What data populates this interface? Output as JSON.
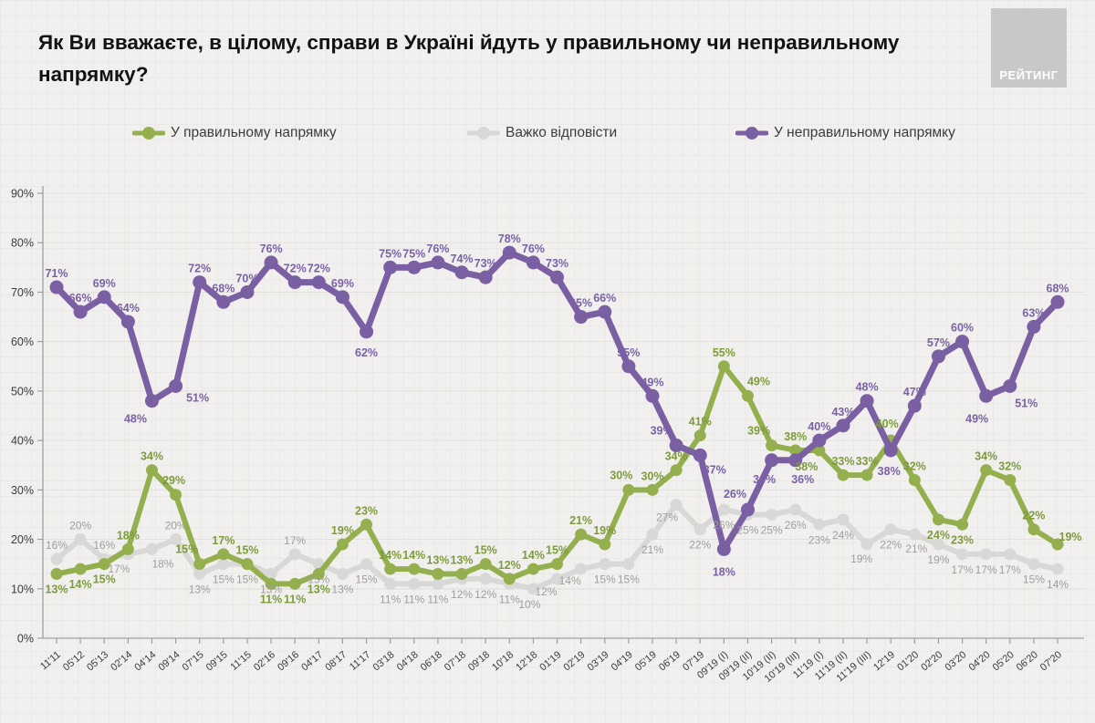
{
  "page": {
    "title": "Як Ви вважаєте, в цілому, справи в Україні йдуть у правильному чи неправильному напрямку?",
    "logo_text": "РЕЙТИНГ"
  },
  "legend": [
    {
      "id": "right-direction",
      "label": "У правильному напрямку",
      "color": "#94af4e"
    },
    {
      "id": "hard-to-say",
      "label": "Важко відповісти",
      "color": "#d8d8d6"
    },
    {
      "id": "wrong-direction",
      "label": "У неправильному напрямку",
      "color": "#7a5fa2"
    }
  ],
  "chart_data": {
    "type": "line",
    "title": "Як Ви вважаєте, в цілому, справи в Україні йдуть у правильному чи неправильному напрямку?",
    "xlabel": "",
    "ylabel": "",
    "ylim": [
      0,
      90
    ],
    "y_ticks": [
      0,
      10,
      20,
      30,
      40,
      50,
      60,
      70,
      80,
      90
    ],
    "y_tick_suffix": "%",
    "grid": true,
    "legend_position": "top",
    "x_labels": [
      "11'11",
      "05'12",
      "05'13",
      "02'14",
      "04'14",
      "09'14",
      "07'15",
      "09'15",
      "11'15",
      "02'16",
      "09'16",
      "04'17",
      "08'17",
      "11'17",
      "03'18",
      "04'18",
      "06'18",
      "07'18",
      "09'18",
      "10'18",
      "12'18",
      "01'19",
      "02'19",
      "03'19",
      "04'19",
      "05'19",
      "06'19",
      "07'19",
      "09'19 (I)",
      "09'19 (II)",
      "10'19 (II)",
      "10'19 (III)",
      "11'19 (I)",
      "11'19 (II)",
      "11'19 (III)",
      "12'19",
      "01'20",
      "02'20",
      "03'20",
      "04'20",
      "05'20",
      "06'20",
      "07'20"
    ],
    "series": [
      {
        "id": "right-direction",
        "name": "У правильному напрямку",
        "color": "#94af4e",
        "label_color": "#7d9b3c",
        "label_default": "above",
        "label_flip": [
          0,
          1,
          2,
          9,
          10,
          11,
          32,
          37,
          38
        ],
        "values": [
          13,
          14,
          15,
          18,
          34,
          29,
          15,
          17,
          15,
          11,
          11,
          13,
          19,
          23,
          14,
          14,
          13,
          13,
          15,
          12,
          14,
          15,
          21,
          19,
          30,
          30,
          34,
          41,
          55,
          49,
          39,
          38,
          38,
          33,
          33,
          40,
          32,
          24,
          23,
          34,
          32,
          22,
          19
        ]
      },
      {
        "id": "hard-to-say",
        "name": "Важко відповісти",
        "color": "#d8d8d6",
        "label_color": "#9e9e9c",
        "label_default": "below",
        "label_flip": [
          0,
          1,
          2,
          5,
          10
        ],
        "values": [
          16,
          20,
          16,
          17,
          18,
          20,
          13,
          15,
          15,
          13,
          17,
          15,
          13,
          15,
          11,
          11,
          11,
          12,
          12,
          11,
          10,
          12,
          14,
          15,
          15,
          21,
          27,
          22,
          26,
          25,
          25,
          26,
          23,
          24,
          19,
          22,
          21,
          19,
          17,
          17,
          17,
          15,
          14
        ]
      },
      {
        "id": "wrong-direction",
        "name": "У неправильному напрямку",
        "color": "#7a5fa2",
        "label_color": "#7a61a6",
        "label_default": "above",
        "label_flip": [
          4,
          5,
          13,
          27,
          28,
          30,
          31,
          35,
          39,
          40
        ],
        "values": [
          71,
          66,
          69,
          64,
          48,
          51,
          72,
          68,
          70,
          76,
          72,
          72,
          69,
          62,
          75,
          75,
          76,
          74,
          73,
          78,
          76,
          73,
          65,
          66,
          55,
          49,
          39,
          37,
          18,
          26,
          36,
          36,
          40,
          43,
          48,
          38,
          47,
          57,
          60,
          49,
          51,
          63,
          68
        ]
      }
    ]
  }
}
